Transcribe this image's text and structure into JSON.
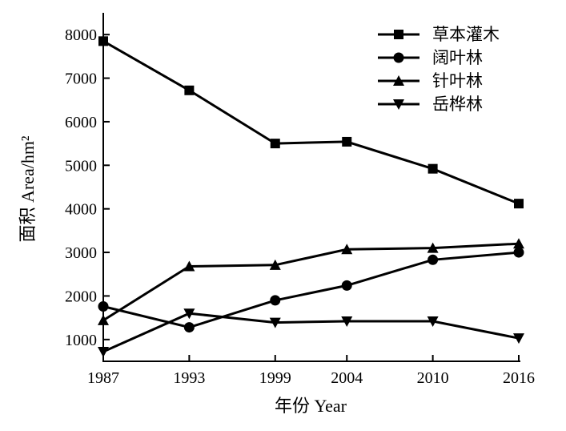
{
  "chart_data": {
    "type": "line",
    "title": "",
    "xlabel": "年份 Year",
    "ylabel": "面积 Area/hm²",
    "categories": [
      "1987",
      "1993",
      "1999",
      "2004",
      "2010",
      "2016"
    ],
    "x": [
      1987,
      1993,
      1999,
      2004,
      2010,
      2016
    ],
    "yticks": [
      1000,
      2000,
      3000,
      4000,
      5000,
      6000,
      7000,
      8000
    ],
    "ylim": [
      500,
      8500
    ],
    "legend_position": "top-right",
    "grid": false,
    "series": [
      {
        "name": "草本灌木",
        "marker": "square",
        "values": [
          7850,
          6720,
          5500,
          5540,
          4920,
          4120
        ]
      },
      {
        "name": "阔叶林",
        "marker": "circle",
        "values": [
          1760,
          1280,
          1900,
          2240,
          2830,
          3000
        ]
      },
      {
        "name": "针叶林",
        "marker": "triangle-up",
        "values": [
          1440,
          2680,
          2710,
          3070,
          3100,
          3200
        ]
      },
      {
        "name": "岳桦林",
        "marker": "triangle-down",
        "values": [
          720,
          1600,
          1390,
          1420,
          1420,
          1030
        ]
      }
    ]
  }
}
